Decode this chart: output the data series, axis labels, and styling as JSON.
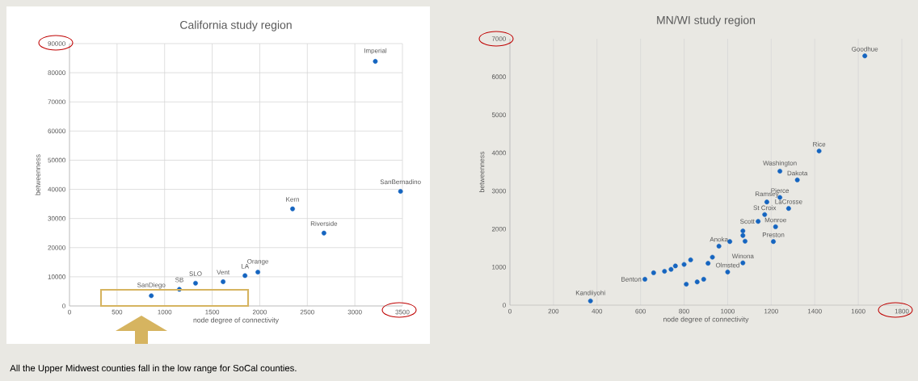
{
  "chart_data": [
    {
      "type": "scatter",
      "title": "California study region",
      "xlabel": "node degree of connectivity",
      "ylabel": "betweenness",
      "color": "#1565c0",
      "grid": true,
      "x": [
        3215,
        3480,
        2345,
        2675,
        1980,
        1845,
        1615,
        1325,
        1155,
        860
      ],
      "values": [
        83900,
        39300,
        33300,
        25000,
        11600,
        10400,
        8300,
        7800,
        5700,
        3500
      ],
      "xlim": [
        0,
        3500
      ],
      "ylim": [
        0,
        90000
      ],
      "xticks": [
        0,
        500,
        1000,
        1500,
        2000,
        2500,
        3000,
        3500
      ],
      "yticks": [
        0,
        10000,
        20000,
        30000,
        40000,
        50000,
        60000,
        70000,
        80000,
        90000
      ],
      "annotations": [
        {
          "text": "Imperial",
          "x": 3215,
          "y": 83900
        },
        {
          "text": "SanBernadino",
          "x": 3480,
          "y": 39300
        },
        {
          "text": "Kern",
          "x": 2345,
          "y": 33300
        },
        {
          "text": "Riverside",
          "x": 2675,
          "y": 25000
        },
        {
          "text": "Orange",
          "x": 1980,
          "y": 11600
        },
        {
          "text": "LA",
          "x": 1845,
          "y": 10400
        },
        {
          "text": "Vent",
          "x": 1615,
          "y": 8300
        },
        {
          "text": "SLO",
          "x": 1325,
          "y": 7800
        },
        {
          "text": "SB",
          "x": 1155,
          "y": 5700
        },
        {
          "text": "SanDiego",
          "x": 860,
          "y": 3500
        },
        "All the Upper Midwest counties fall in the low range for SoCal counties."
      ]
    },
    {
      "type": "scatter",
      "title": "MN/WI study region",
      "xlabel": "node degree of connectivity",
      "ylabel": "betweenness",
      "color": "#1565c0",
      "grid": "x",
      "x": [
        1630,
        1420,
        1240,
        1320,
        1240,
        1180,
        1280,
        1170,
        1140,
        1220,
        1070,
        1070,
        1080,
        1010,
        1210,
        960,
        930,
        1070,
        1000,
        910,
        830,
        800,
        760,
        740,
        710,
        660,
        620,
        810,
        860,
        890,
        370
      ],
      "values": [
        6550,
        4050,
        3520,
        3290,
        2830,
        2710,
        2540,
        2380,
        2200,
        2060,
        1950,
        1830,
        1680,
        1670,
        1670,
        1550,
        1260,
        1110,
        870,
        1100,
        1190,
        1070,
        1030,
        940,
        890,
        850,
        680,
        550,
        610,
        680,
        110
      ],
      "xlim": [
        0,
        1800
      ],
      "ylim": [
        0,
        7000
      ],
      "xticks": [
        0,
        200,
        400,
        600,
        800,
        1000,
        1200,
        1400,
        1600,
        1800
      ],
      "yticks": [
        0,
        1000,
        2000,
        3000,
        4000,
        5000,
        6000,
        7000
      ],
      "annotations": [
        {
          "text": "Goodhue",
          "x": 1630,
          "y": 6550
        },
        {
          "text": "Rice",
          "x": 1420,
          "y": 4050
        },
        {
          "text": "Washington",
          "x": 1240,
          "y": 3520
        },
        {
          "text": "Dakota",
          "x": 1320,
          "y": 3290
        },
        {
          "text": "Pierce",
          "x": 1240,
          "y": 2830
        },
        {
          "text": "Ramsey",
          "x": 1180,
          "y": 2710
        },
        {
          "text": "LaCrosse",
          "x": 1280,
          "y": 2540
        },
        {
          "text": "St Croix",
          "x": 1170,
          "y": 2380
        },
        {
          "text": "Scott",
          "x": 1140,
          "y": 2200
        },
        {
          "text": "Monroe",
          "x": 1220,
          "y": 2060
        },
        {
          "text": "Preston",
          "x": 1210,
          "y": 1670
        },
        {
          "text": "Anoka",
          "x": 960,
          "y": 1550
        },
        {
          "text": "Winona",
          "x": 1070,
          "y": 1110
        },
        {
          "text": "Olmsted",
          "x": 1000,
          "y": 870
        },
        {
          "text": "Benton",
          "x": 620,
          "y": 680
        },
        {
          "text": "Kandiiyohi",
          "x": 370,
          "y": 110
        }
      ]
    }
  ]
}
